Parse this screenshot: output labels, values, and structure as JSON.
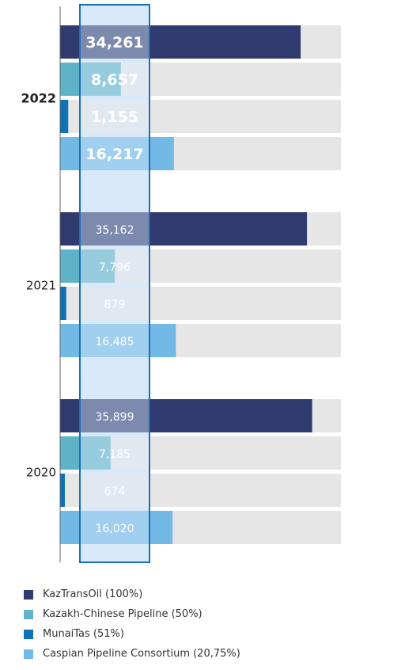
{
  "chart_data": {
    "type": "bar",
    "orientation": "horizontal",
    "categories": [
      "2022",
      "2021",
      "2020"
    ],
    "series": [
      {
        "name": "KazTransOil (100%)",
        "color": "#2f3b6e",
        "values": [
          34261,
          35162,
          35899
        ]
      },
      {
        "name": "Kazakh-Chinese Pipeline (50%)",
        "color": "#5fb3c9",
        "values": [
          8657,
          7796,
          7185
        ]
      },
      {
        "name": "MunaiTas (51%)",
        "color": "#0f72b7",
        "values": [
          1155,
          879,
          674
        ]
      },
      {
        "name": "Caspian Pipeline Consortium (20,75%)",
        "color": "#72b9e6",
        "values": [
          16217,
          16485,
          16020
        ]
      }
    ],
    "value_labels": [
      [
        "34,261",
        "8,657",
        "1,155",
        "16,217"
      ],
      [
        "35,162",
        "7,796",
        "879",
        "16,485"
      ],
      [
        "35,899",
        "7,185",
        "674",
        "16,020"
      ]
    ],
    "xlim": [
      0,
      40000
    ],
    "highlighted_category": "2022",
    "track_color": "#e6e6e6",
    "highlight_column_color": "#1a6fba",
    "legend_position": "bottom-left",
    "grid": false,
    "title": "",
    "xlabel": "",
    "ylabel": ""
  }
}
